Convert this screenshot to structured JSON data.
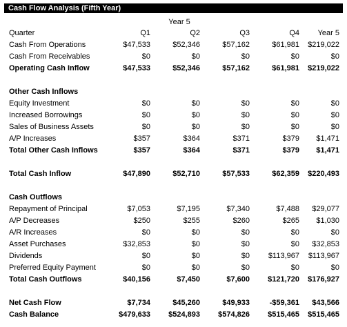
{
  "title": "Cash Flow Analysis (Fifth Year)",
  "year_label": "Year 5",
  "header": {
    "label": "Quarter",
    "cols": [
      "Q1",
      "Q2",
      "Q3",
      "Q4",
      "Year 5"
    ]
  },
  "rows": [
    {
      "label": "Cash From Operations",
      "bold": false,
      "values": [
        "$47,533",
        "$52,346",
        "$57,162",
        "$61,981",
        "$219,022"
      ]
    },
    {
      "label": "Cash From Receivables",
      "bold": false,
      "values": [
        "$0",
        "$0",
        "$0",
        "$0",
        "$0"
      ]
    },
    {
      "label": "Operating Cash Inflow",
      "bold": true,
      "values": [
        "$47,533",
        "$52,346",
        "$57,162",
        "$61,981",
        "$219,022"
      ]
    },
    {
      "label": "",
      "bold": false,
      "values": []
    },
    {
      "label": "Other Cash Inflows",
      "bold": true,
      "values": []
    },
    {
      "label": "Equity Investment",
      "bold": false,
      "values": [
        "$0",
        "$0",
        "$0",
        "$0",
        "$0"
      ]
    },
    {
      "label": "Increased Borrowings",
      "bold": false,
      "values": [
        "$0",
        "$0",
        "$0",
        "$0",
        "$0"
      ]
    },
    {
      "label": "Sales of Business Assets",
      "bold": false,
      "values": [
        "$0",
        "$0",
        "$0",
        "$0",
        "$0"
      ]
    },
    {
      "label": "A/P Increases",
      "bold": false,
      "values": [
        "$357",
        "$364",
        "$371",
        "$379",
        "$1,471"
      ]
    },
    {
      "label": "Total Other Cash Inflows",
      "bold": true,
      "values": [
        "$357",
        "$364",
        "$371",
        "$379",
        "$1,471"
      ]
    },
    {
      "label": "",
      "bold": false,
      "values": []
    },
    {
      "label": "Total Cash Inflow",
      "bold": true,
      "values": [
        "$47,890",
        "$52,710",
        "$57,533",
        "$62,359",
        "$220,493"
      ]
    },
    {
      "label": "",
      "bold": false,
      "values": []
    },
    {
      "label": "Cash Outflows",
      "bold": true,
      "values": []
    },
    {
      "label": "Repayment of Principal",
      "bold": false,
      "values": [
        "$7,053",
        "$7,195",
        "$7,340",
        "$7,488",
        "$29,077"
      ]
    },
    {
      "label": "A/P Decreases",
      "bold": false,
      "values": [
        "$250",
        "$255",
        "$260",
        "$265",
        "$1,030"
      ]
    },
    {
      "label": "A/R Increases",
      "bold": false,
      "values": [
        "$0",
        "$0",
        "$0",
        "$0",
        "$0"
      ]
    },
    {
      "label": "Asset Purchases",
      "bold": false,
      "values": [
        "$32,853",
        "$0",
        "$0",
        "$0",
        "$32,853"
      ]
    },
    {
      "label": "Dividends",
      "bold": false,
      "values": [
        "$0",
        "$0",
        "$0",
        "$113,967",
        "$113,967"
      ]
    },
    {
      "label": "Preferred Equity Payment",
      "bold": false,
      "values": [
        "$0",
        "$0",
        "$0",
        "$0",
        "$0"
      ]
    },
    {
      "label": "Total Cash Outflows",
      "bold": true,
      "values": [
        "$40,156",
        "$7,450",
        "$7,600",
        "$121,720",
        "$176,927"
      ]
    },
    {
      "label": "",
      "bold": false,
      "values": []
    },
    {
      "label": "Net Cash Flow",
      "bold": true,
      "values": [
        "$7,734",
        "$45,260",
        "$49,933",
        "-$59,361",
        "$43,566"
      ]
    },
    {
      "label": "Cash Balance",
      "bold": true,
      "values": [
        "$479,633",
        "$524,893",
        "$574,826",
        "$515,465",
        "$515,465"
      ]
    }
  ]
}
